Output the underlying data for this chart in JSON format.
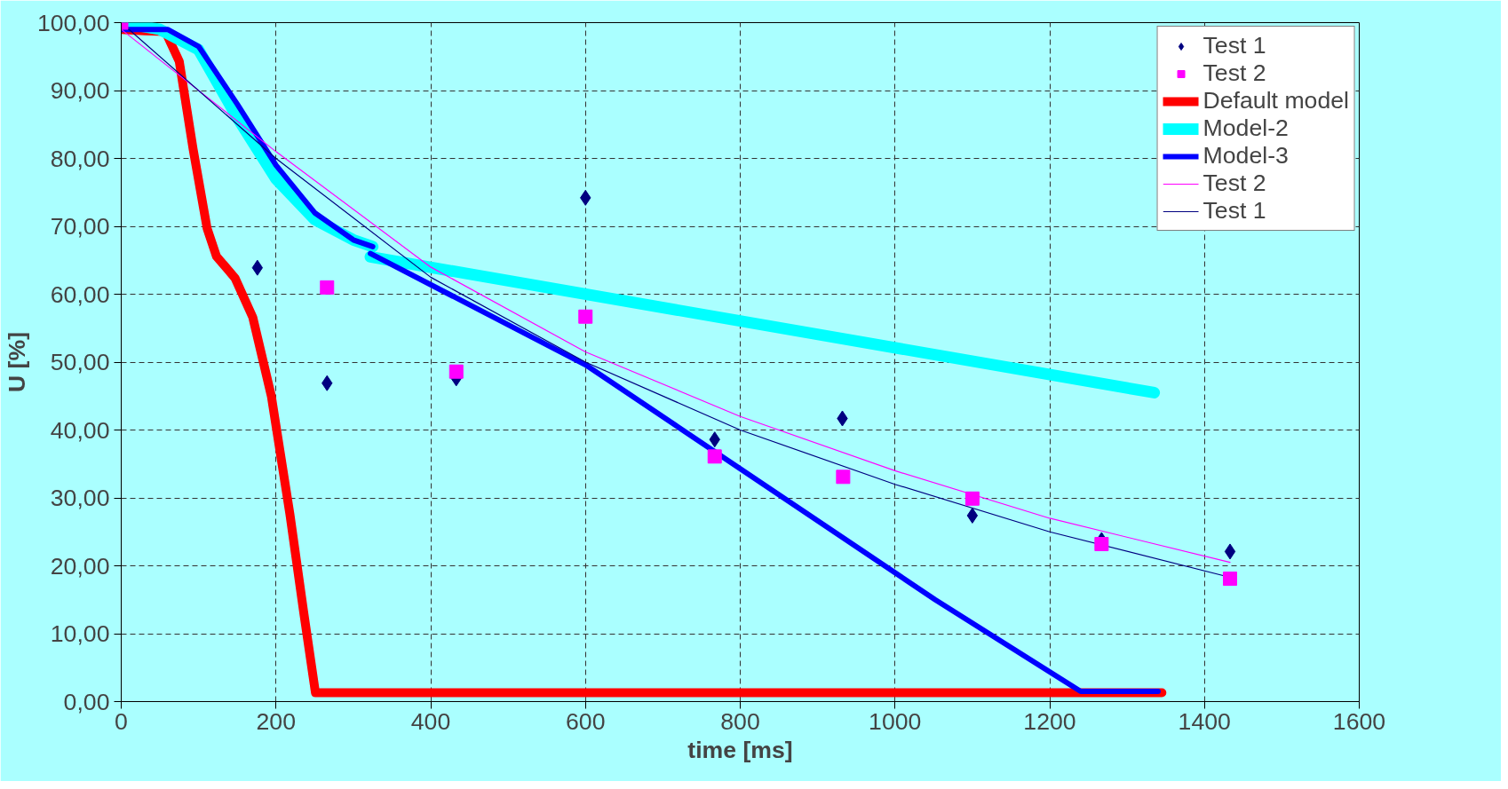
{
  "chart_data": {
    "type": "line",
    "xlabel": "time [ms]",
    "ylabel": "U [%]",
    "xlim": [
      0,
      1600
    ],
    "xticks": [
      0,
      200,
      400,
      600,
      800,
      1000,
      1200,
      1400,
      1600
    ],
    "ylim": [
      0,
      100
    ],
    "yticks": [
      {
        "value": 0,
        "label": "0,00"
      },
      {
        "value": 10,
        "label": "10,00"
      },
      {
        "value": 20,
        "label": "20,00"
      },
      {
        "value": 30,
        "label": "30,00"
      },
      {
        "value": 40,
        "label": "40,00"
      },
      {
        "value": 50,
        "label": "50,00"
      },
      {
        "value": 60,
        "label": "60,00"
      },
      {
        "value": 70,
        "label": "70,00"
      },
      {
        "value": 80,
        "label": "80,00"
      },
      {
        "value": 90,
        "label": "90,00"
      },
      {
        "value": 100,
        "label": "100,00"
      }
    ],
    "grid": true,
    "legend": "top right",
    "series": [
      {
        "name": "Test 1",
        "type": "scatter",
        "marker": "diamond",
        "color": "#000080",
        "x": [
          176,
          266,
          433,
          600,
          767,
          932,
          1100,
          1267,
          1433
        ],
        "values": [
          63.9,
          46.9,
          47.6,
          74.2,
          38.6,
          41.7,
          27.4,
          23.8,
          22.1
        ]
      },
      {
        "name": "Test 2",
        "type": "scatter",
        "marker": "square",
        "color": "#ff00ff",
        "x": [
          0,
          266,
          433,
          600,
          767,
          933,
          1100,
          1267,
          1433
        ],
        "values": [
          100,
          61.0,
          48.6,
          56.7,
          36.1,
          33.1,
          29.9,
          23.2,
          18.1
        ]
      },
      {
        "name": "Default model",
        "color": "#ff0000",
        "x": [
          0,
          30,
          57,
          75,
          93,
          111,
          123,
          147,
          170,
          194,
          218,
          236,
          251,
          400,
          800,
          1200,
          1345
        ],
        "values": [
          99,
          98.8,
          98.7,
          94.3,
          81.3,
          69.7,
          65.6,
          62.4,
          56.6,
          45,
          27.6,
          13,
          1.3,
          1.3,
          1.3,
          1.3,
          1.3
        ]
      },
      {
        "name": "Model-2",
        "color": "#00ffff",
        "x": [
          0,
          50,
          100,
          150,
          200,
          250,
          300,
          325,
          null,
          322,
          1335
        ],
        "values": [
          100,
          99,
          96,
          86,
          77,
          71,
          68,
          67,
          null,
          65.5,
          45.5
        ]
      },
      {
        "name": "Model-3",
        "color": "#0000ff",
        "x": [
          0,
          60,
          100,
          150,
          200,
          250,
          300,
          325,
          null,
          322,
          600,
          1052,
          1240,
          1340
        ],
        "values": [
          99,
          99,
          96.5,
          88,
          79,
          72,
          68,
          67,
          null,
          66,
          49.6,
          15,
          1.5,
          1.5
        ]
      },
      {
        "name": "Test 2",
        "color": "#ff00ff",
        "x": [
          0,
          200,
          400,
          600,
          800,
          1000,
          1200,
          1433
        ],
        "values": [
          99,
          81,
          64,
          51.5,
          42,
          34,
          27,
          20.5
        ]
      },
      {
        "name": "Test 1",
        "color": "#000080",
        "x": [
          0,
          200,
          400,
          600,
          800,
          1000,
          1200,
          1433
        ],
        "values": [
          100,
          80,
          62.5,
          50,
          40,
          32,
          25,
          18.3
        ]
      }
    ]
  }
}
